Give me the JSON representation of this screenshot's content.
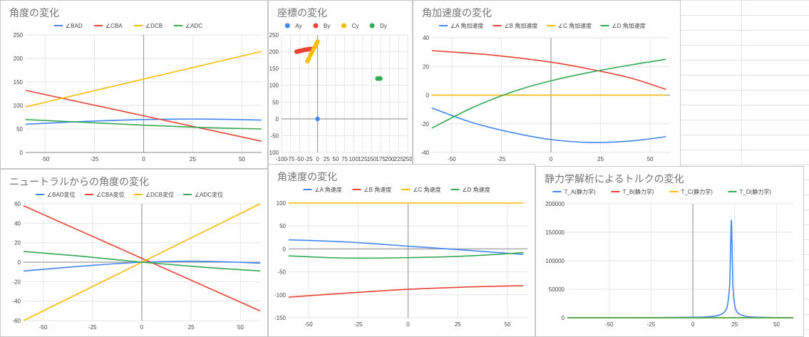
{
  "colors": {
    "blue": "#4285f4",
    "red": "#ea4335",
    "yellow": "#fbbc04",
    "green": "#34a853",
    "axis": "#9e9e9e",
    "grid": "#e6e6e6"
  },
  "chart_data": [
    {
      "id": "c1",
      "type": "line",
      "title": "角度の変化",
      "xlim": [
        -60,
        60
      ],
      "xticks": [
        -50,
        -25,
        0,
        25,
        50
      ],
      "ylim": [
        0,
        250
      ],
      "yticks": [
        0,
        50,
        100,
        150,
        200,
        250
      ],
      "series": [
        {
          "name": "∠BAD",
          "color": "#4285f4",
          "x": [
            -60,
            -30,
            0,
            30,
            60
          ],
          "y": [
            60,
            66,
            70,
            71,
            69
          ]
        },
        {
          "name": "∠CBA",
          "color": "#ea4335",
          "x": [
            -60,
            60
          ],
          "y": [
            132,
            24
          ]
        },
        {
          "name": "∠DCB",
          "color": "#fbbc04",
          "x": [
            -60,
            60
          ],
          "y": [
            97,
            215
          ]
        },
        {
          "name": "∠ADC",
          "color": "#34a853",
          "x": [
            -60,
            -30,
            0,
            30,
            60
          ],
          "y": [
            70,
            64,
            58,
            53,
            50
          ]
        }
      ]
    },
    {
      "id": "c2",
      "type": "scatter",
      "title": "座標の変化",
      "xlim": [
        -100,
        250
      ],
      "xticks": [
        -100,
        -75,
        -50,
        -25,
        0,
        25,
        50,
        75,
        100,
        125,
        150,
        175,
        200,
        225,
        250
      ],
      "ylim": [
        -100,
        250
      ],
      "yticks": [
        -100,
        -50,
        0,
        50,
        100,
        150,
        200,
        250
      ],
      "series": [
        {
          "name": "Ay",
          "color": "#4285f4",
          "x": [
            0
          ],
          "y": [
            0
          ]
        },
        {
          "name": "By",
          "color": "#ea4335",
          "x": [
            -58,
            -54,
            -50,
            -46,
            -42,
            -38,
            -34,
            -30,
            -26,
            -22,
            -18
          ],
          "y": [
            200,
            201,
            202,
            203,
            204,
            205,
            206,
            207,
            207,
            208,
            208
          ]
        },
        {
          "name": "Cy",
          "color": "#fbbc04",
          "x": [
            -28,
            -24,
            -20,
            -16,
            -12,
            -8,
            -4,
            0
          ],
          "y": [
            172,
            180,
            190,
            198,
            206,
            214,
            222,
            230
          ]
        },
        {
          "name": "Dy",
          "color": "#34a853",
          "x": [
            166,
            168,
            170,
            172,
            174
          ],
          "y": [
            120,
            120,
            120,
            120,
            120
          ]
        }
      ]
    },
    {
      "id": "c3",
      "type": "line",
      "title": "角加速度の変化",
      "xlim": [
        -60,
        60
      ],
      "xticks": [
        -50,
        -25,
        0,
        25,
        50
      ],
      "ylim": [
        -40,
        40
      ],
      "yticks": [
        -40,
        -20,
        0,
        20,
        40
      ],
      "series": [
        {
          "name": "∠A 角加速度",
          "color": "#4285f4",
          "x": [
            -60,
            -40,
            -20,
            0,
            20,
            40,
            58
          ],
          "y": [
            -9,
            -19,
            -26,
            -31,
            -33,
            -32,
            -29
          ]
        },
        {
          "name": "∠B 角加速度",
          "color": "#ea4335",
          "x": [
            -60,
            -30,
            0,
            20,
            40,
            58
          ],
          "y": [
            31,
            28,
            23,
            18,
            12,
            4
          ]
        },
        {
          "name": "∠C 角加速度",
          "color": "#fbbc04",
          "x": [
            -60,
            58
          ],
          "y": [
            0,
            0
          ]
        },
        {
          "name": "∠D 角加速度",
          "color": "#34a853",
          "x": [
            -60,
            -40,
            -20,
            0,
            20,
            40,
            58
          ],
          "y": [
            -23,
            -9,
            2,
            10,
            16,
            21,
            25
          ]
        }
      ]
    },
    {
      "id": "c4",
      "type": "line",
      "title": "ニュートラルからの角度の変化",
      "xlim": [
        -60,
        60
      ],
      "xticks": [
        -50,
        -25,
        0,
        25,
        50
      ],
      "ylim": [
        -60,
        60
      ],
      "yticks": [
        -60,
        -40,
        -20,
        0,
        20,
        40,
        60
      ],
      "series": [
        {
          "name": "∠BAD変位",
          "color": "#4285f4",
          "x": [
            -60,
            -30,
            0,
            30,
            60
          ],
          "y": [
            -9,
            -4,
            0,
            1,
            -1
          ]
        },
        {
          "name": "∠CBA変位",
          "color": "#ea4335",
          "x": [
            -60,
            60
          ],
          "y": [
            58,
            -50
          ]
        },
        {
          "name": "∠DCB変位",
          "color": "#fbbc04",
          "x": [
            -60,
            60
          ],
          "y": [
            -60,
            60
          ]
        },
        {
          "name": "∠ADC変位",
          "color": "#34a853",
          "x": [
            -60,
            -30,
            0,
            30,
            60
          ],
          "y": [
            11,
            6,
            0,
            -5,
            -9
          ]
        }
      ]
    },
    {
      "id": "c5",
      "type": "line",
      "title": "角速度の変化",
      "xlim": [
        -60,
        60
      ],
      "xticks": [
        -50,
        -25,
        0,
        25,
        50
      ],
      "ylim": [
        -150,
        100
      ],
      "yticks": [
        -150,
        -100,
        -50,
        0,
        50,
        100
      ],
      "series": [
        {
          "name": "∠A 角速度",
          "color": "#4285f4",
          "x": [
            -60,
            -30,
            0,
            30,
            58
          ],
          "y": [
            20,
            15,
            6,
            -3,
            -12
          ]
        },
        {
          "name": "∠B 角速度",
          "color": "#ea4335",
          "x": [
            -60,
            -30,
            0,
            30,
            58
          ],
          "y": [
            -105,
            -96,
            -88,
            -83,
            -80
          ]
        },
        {
          "name": "∠C 角速度",
          "color": "#fbbc04",
          "x": [
            -60,
            58
          ],
          "y": [
            100,
            100
          ]
        },
        {
          "name": "∠D 角速度",
          "color": "#34a853",
          "x": [
            -60,
            -40,
            -20,
            0,
            20,
            40,
            58
          ],
          "y": [
            -15,
            -19,
            -20,
            -19,
            -17,
            -13,
            -8
          ]
        }
      ]
    },
    {
      "id": "c6",
      "type": "line",
      "title": "静力学解析によるトルクの変化",
      "xlim": [
        -75,
        60
      ],
      "xticks": [
        -50,
        -25,
        0,
        25,
        50
      ],
      "ylim": [
        0,
        200000
      ],
      "yticks": [
        0,
        50000,
        100000,
        150000,
        200000
      ],
      "series": [
        {
          "name": "T_A(静力学)",
          "color": "#4285f4",
          "x": [
            -75,
            -50,
            -25,
            0,
            10,
            15,
            18,
            20,
            21,
            22,
            22.5,
            23,
            23.5,
            24,
            25,
            26,
            28,
            32,
            40,
            60
          ],
          "y": [
            0,
            0,
            200,
            800,
            2000,
            4000,
            8000,
            15000,
            28000,
            60000,
            120000,
            171000,
            110000,
            50000,
            22000,
            12000,
            6000,
            2500,
            800,
            0
          ]
        },
        {
          "name": "T_B(静力学)",
          "color": "#ea4335",
          "x": [
            -75,
            60
          ],
          "y": [
            0,
            0
          ]
        },
        {
          "name": "T_C(静力学)",
          "color": "#fbbc04",
          "x": [
            -75,
            60
          ],
          "y": [
            0,
            0
          ]
        },
        {
          "name": "T_D(静力学)",
          "color": "#34a853",
          "x": [
            -75,
            60
          ],
          "y": [
            0,
            0
          ]
        }
      ]
    }
  ]
}
